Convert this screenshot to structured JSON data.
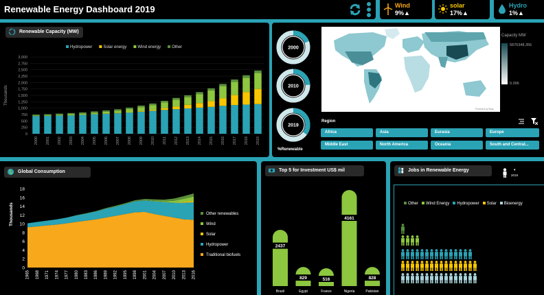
{
  "header": {
    "title": "Renewable Energy Dashboard 2019"
  },
  "kpis": [
    {
      "label": "Wind",
      "value": "9%▲",
      "icon": "wind-turbine-icon",
      "color": "#8dc63f"
    },
    {
      "label": "solar",
      "value": "17%▲",
      "icon": "sun-icon",
      "color": "#f7c600"
    },
    {
      "label": "Hydro",
      "value": "1%▲",
      "icon": "water-drop-icon",
      "color": "#2aa3b5"
    }
  ],
  "capacity": {
    "title": "Renewable Capacity (MW)",
    "legend": [
      "Hydropower",
      "Solar energy",
      "Wind energy",
      "Other"
    ],
    "y_label": "Thousands"
  },
  "donuts": {
    "labels": [
      "2000",
      "2010",
      "2019"
    ],
    "caption": "%Renewable"
  },
  "map": {
    "legend_title": "Capacity MW",
    "max_label": "5876348.356",
    "min_label": "0.096",
    "credit": "Powered by Bing"
  },
  "region": {
    "label": "Region",
    "buttons": [
      "Africa",
      "Asia",
      "Eurasia",
      "Europe",
      "Middle East",
      "North America",
      "Oceania",
      "South and Central..."
    ]
  },
  "consumption": {
    "title": "Global Consumption",
    "y_label": "Thousands",
    "legend": [
      "Other renewables",
      "Wind",
      "Solar",
      "Hydropower",
      "Traditional biofuels"
    ]
  },
  "investment": {
    "title": "Top 5 for Investment US$ mil"
  },
  "jobs": {
    "title": "Jobs in Renewable Energy",
    "year": "2018",
    "legend": [
      "Other",
      "Wind Energy",
      "Hydropower",
      "Solar",
      "Bioenergy"
    ]
  },
  "colors": {
    "hydro": "#2aa3b5",
    "solar": "#f7c600",
    "wind": "#8dc63f",
    "other": "#5a8f3c",
    "biofuel": "#f7a81b",
    "panel": "#000000",
    "bg": "#2aa3b5"
  },
  "chart_data": [
    {
      "type": "bar",
      "title": "Renewable Capacity (MW)",
      "ylabel": "Thousands",
      "categories": [
        "2000",
        "2001",
        "2002",
        "2003",
        "2004",
        "2005",
        "2006",
        "2007",
        "2008",
        "2009",
        "2010",
        "2011",
        "2012",
        "2013",
        "2014",
        "2015",
        "2016",
        "2017",
        "2018",
        "2019"
      ],
      "ylim": [
        0,
        3000
      ],
      "yticks": [
        "0",
        "250",
        "500",
        "750",
        "1,000",
        "1,250",
        "1,500",
        "1,750",
        "2,000",
        "2,250",
        "2,500",
        "2,750",
        "3,000"
      ],
      "series": [
        {
          "name": "Hydropower",
          "values": [
            690,
            700,
            710,
            720,
            735,
            760,
            780,
            800,
            830,
            860,
            900,
            930,
            960,
            990,
            1020,
            1050,
            1090,
            1120,
            1140,
            1160
          ]
        },
        {
          "name": "Solar energy",
          "values": [
            1,
            1,
            2,
            3,
            4,
            5,
            7,
            9,
            15,
            22,
            40,
            70,
            100,
            140,
            180,
            225,
            300,
            390,
            490,
            590
          ]
        },
        {
          "name": "Wind energy",
          "values": [
            17,
            24,
            31,
            40,
            48,
            59,
            74,
            94,
            121,
            159,
            180,
            220,
            270,
            300,
            350,
            420,
            470,
            520,
            560,
            620
          ]
        },
        {
          "name": "Other",
          "values": [
            40,
            42,
            44,
            46,
            48,
            50,
            52,
            54,
            56,
            60,
            62,
            66,
            70,
            74,
            78,
            82,
            86,
            90,
            95,
            100
          ]
        }
      ]
    },
    {
      "type": "pie",
      "title": "%Renewable",
      "categories": [
        "2000",
        "2010",
        "2019"
      ],
      "values": [
        19,
        24,
        35
      ]
    },
    {
      "type": "area",
      "title": "Global Consumption",
      "ylabel": "Thousands",
      "x": [
        "1965",
        "1968",
        "1971",
        "1974",
        "1977",
        "1980",
        "1983",
        "1986",
        "1989",
        "1992",
        "1995",
        "1998",
        "2001",
        "2004",
        "2007",
        "2010",
        "2013",
        "2016"
      ],
      "ylim": [
        0,
        18
      ],
      "yticks": [
        "0",
        "2",
        "4",
        "6",
        "8",
        "10",
        "12",
        "14",
        "16",
        "18"
      ],
      "series": [
        {
          "name": "Traditional biofuels",
          "values": [
            9.2,
            9.4,
            9.6,
            9.8,
            10.1,
            10.4,
            10.7,
            11.0,
            11.4,
            11.8,
            12.2,
            12.6,
            12.7,
            12.2,
            11.8,
            11.4,
            11.0,
            10.9
          ]
        },
        {
          "name": "Hydropower",
          "values": [
            0.9,
            1.0,
            1.1,
            1.2,
            1.3,
            1.5,
            1.6,
            1.8,
            2.0,
            2.1,
            2.3,
            2.5,
            2.6,
            2.9,
            3.1,
            3.4,
            3.8,
            4.0
          ]
        },
        {
          "name": "Solar",
          "values": [
            0,
            0,
            0,
            0,
            0,
            0,
            0,
            0,
            0,
            0,
            0,
            0,
            0,
            0,
            0,
            0.05,
            0.2,
            0.3
          ]
        },
        {
          "name": "Wind",
          "values": [
            0,
            0,
            0,
            0,
            0,
            0,
            0,
            0,
            0,
            0,
            0,
            0,
            0.05,
            0.1,
            0.2,
            0.4,
            0.7,
            1.0
          ]
        },
        {
          "name": "Other renewables",
          "values": [
            0,
            0,
            0,
            0,
            0,
            0.05,
            0.1,
            0.1,
            0.15,
            0.2,
            0.2,
            0.25,
            0.3,
            0.35,
            0.4,
            0.5,
            0.6,
            0.7
          ]
        }
      ]
    },
    {
      "type": "bar",
      "title": "Top 5 for Investment US$ mil",
      "categories": [
        "Brazil",
        "Egypt",
        "France",
        "Nigeria",
        "Pakistan"
      ],
      "values": [
        2437,
        829,
        516,
        4161,
        828
      ]
    }
  ]
}
